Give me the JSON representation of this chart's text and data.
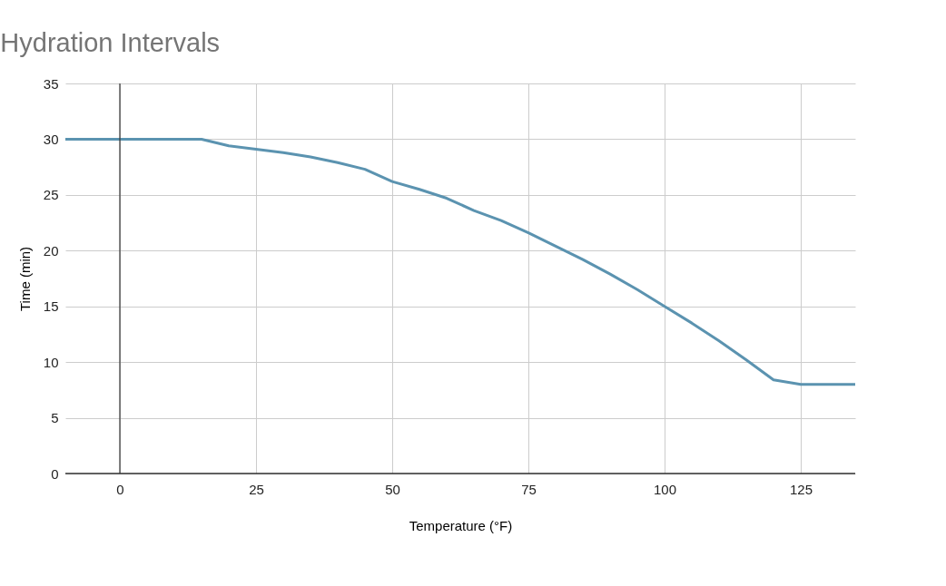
{
  "chart_data": {
    "type": "line",
    "title": "Hydration Intervals",
    "xlabel": "Temperature (°F)",
    "ylabel": "Time (min)",
    "x": [
      -10,
      15,
      20,
      25,
      30,
      35,
      40,
      45,
      50,
      55,
      60,
      65,
      70,
      75,
      80,
      85,
      90,
      95,
      100,
      105,
      110,
      115,
      120,
      125,
      135
    ],
    "series": [
      {
        "color": "#5b93b0",
        "values": [
          30,
          30,
          29.4,
          29.1,
          28.8,
          28.4,
          27.9,
          27.3,
          26.2,
          25.5,
          24.7,
          23.6,
          22.7,
          21.6,
          20.4,
          19.2,
          17.9,
          16.5,
          15,
          13.5,
          11.9,
          10.2,
          8.4,
          8,
          8
        ]
      }
    ],
    "xlim": [
      -10,
      135
    ],
    "xticks": [
      0,
      25,
      50,
      75,
      100,
      125
    ],
    "ylim": [
      0,
      35
    ],
    "yticks": [
      0,
      5,
      10,
      15,
      20,
      25,
      30,
      35
    ],
    "grid": true,
    "ref_lines": [
      {
        "axis": "x",
        "value": 0,
        "color": "#333333"
      }
    ]
  }
}
